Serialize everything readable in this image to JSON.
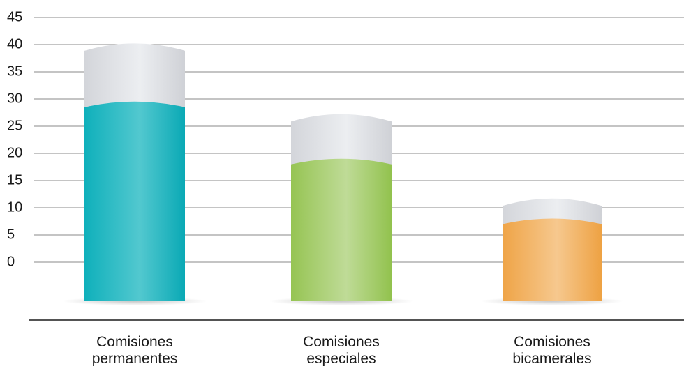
{
  "chart_data": {
    "type": "bar",
    "categories": [
      [
        "Comisiones",
        "permanentes"
      ],
      [
        "Comisiones",
        "especiales"
      ],
      [
        "Comisiones",
        "bicamerales"
      ]
    ],
    "series": [
      {
        "values": [
          29,
          18.5,
          7.5
        ],
        "color": "#12b5bf"
      },
      {
        "values": [
          10.5,
          8,
          3.5
        ],
        "color": "#d8dadf"
      }
    ],
    "bar_colors": [
      "#12b5bf",
      "#9cc85a",
      "#f0a74c"
    ],
    "cap_color": "#d8dadf",
    "y_ticks": [
      0,
      5,
      10,
      15,
      20,
      25,
      30,
      35,
      40,
      45
    ],
    "ylim": [
      0,
      45
    ],
    "grid": true
  }
}
